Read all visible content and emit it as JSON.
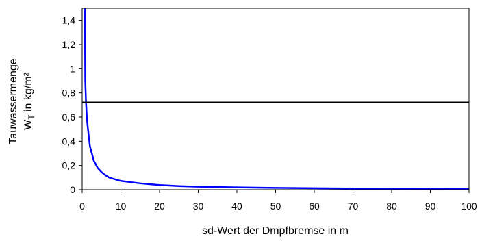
{
  "chart_data": {
    "type": "line",
    "title": "",
    "xlabel": "sd-Wert der Dmpfbremse in m",
    "ylabel_line1": "Tauwassermenge",
    "ylabel_line2_main": "W",
    "ylabel_line2_sub": "T",
    "ylabel_line2_rest": " in kg/m²",
    "xlim": [
      0,
      100
    ],
    "ylim": [
      0,
      1.5
    ],
    "x_ticks": [
      0,
      10,
      20,
      30,
      40,
      50,
      60,
      70,
      80,
      90,
      100
    ],
    "x_tick_labels": [
      "0",
      "10",
      "20",
      "30",
      "40",
      "50",
      "60",
      "70",
      "80",
      "90",
      "100"
    ],
    "y_ticks": [
      0,
      0.2,
      0.4,
      0.6,
      0.8,
      1.0,
      1.2,
      1.4
    ],
    "y_tick_labels": [
      "0",
      "0,2",
      "0,4",
      "0,6",
      "0,8",
      "1",
      "1,2",
      "1,4"
    ],
    "grid": false,
    "series": [
      {
        "color": "#0000ff",
        "x": [
          0.7,
          0.8,
          1.0,
          1.2,
          1.5,
          2,
          3,
          4,
          5,
          6,
          7,
          8,
          10,
          12,
          15,
          20,
          25,
          30,
          40,
          50,
          60,
          70,
          80,
          90,
          100
        ],
        "y": [
          1.5,
          0.9,
          0.72,
          0.6,
          0.5,
          0.36,
          0.24,
          0.18,
          0.145,
          0.12,
          0.1,
          0.09,
          0.072,
          0.064,
          0.052,
          0.038,
          0.03,
          0.025,
          0.019,
          0.015,
          0.012,
          0.01,
          0.009,
          0.008,
          0.007
        ]
      },
      {
        "color": "#000000",
        "x": [
          0,
          100
        ],
        "y": [
          0.72,
          0.72
        ]
      }
    ]
  }
}
